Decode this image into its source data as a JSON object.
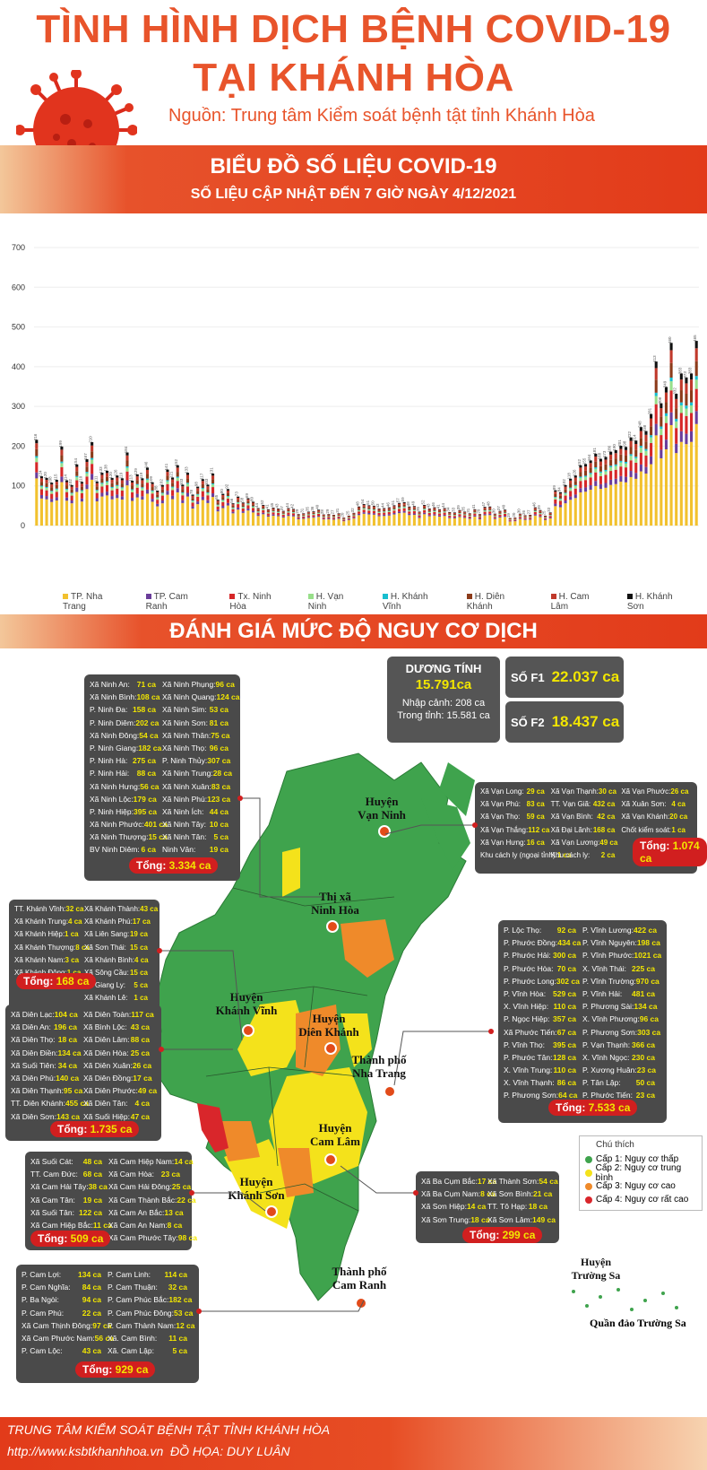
{
  "header": {
    "title_line1": "TÌNH HÌNH DỊCH BỆNH COVID-19",
    "title_line2": "TẠI KHÁNH HÒA",
    "source": "Nguồn: Trung tâm Kiểm soát bệnh tật tỉnh Khánh Hòa",
    "banner_title": "BIỂU ĐỒ SỐ LIỆU COVID-19",
    "banner_subtitle": "SỐ LIỆU CẬP NHẬT ĐẾN 7 GIỜ NGÀY 4/12/2021"
  },
  "colors": {
    "accent": "#e8542b",
    "banner": "#e23b1a",
    "box": "#4a4a4a",
    "value": "#f2e600",
    "total": "#d11f1f",
    "green": "#3fa34d",
    "yellow": "#f4e21b",
    "orange": "#ef8a2a",
    "red": "#d9262b"
  },
  "chart_data": {
    "type": "bar",
    "ylim": [
      0,
      700
    ],
    "yticks": [
      "0",
      "100",
      "200",
      "300",
      "400",
      "500",
      "600",
      "700"
    ],
    "legend": [
      "TP. Nha Trang",
      "TP. Cam Ranh",
      "Tx. Ninh Hòa",
      "H. Vạn Ninh",
      "H. Khánh Vĩnh",
      "H. Diên Khánh",
      "H. Cam Lâm",
      "H. Khánh Sơn"
    ],
    "series_colors": [
      "#f2c12e",
      "#6a3d9a",
      "#d62728",
      "#98df8a",
      "#17becf",
      "#8c3b1a",
      "#c0392b",
      "#111111"
    ],
    "totals": [
      216,
      124,
      120,
      108,
      115,
      199,
      114,
      102,
      154,
      110,
      167,
      210,
      111,
      133,
      138,
      120,
      126,
      119,
      184,
      113,
      129,
      119,
      146,
      109,
      88,
      102,
      141,
      121,
      152,
      103,
      133,
      78,
      98,
      117,
      103,
      131,
      65,
      80,
      92,
      56,
      73,
      58,
      69,
      60,
      44,
      52,
      41,
      45,
      43,
      37,
      44,
      42,
      29,
      31,
      35,
      36,
      40,
      28,
      29,
      27,
      31,
      20,
      25,
      32,
      48,
      54,
      51,
      50,
      43,
      44,
      46,
      51,
      57,
      59,
      48,
      49,
      35,
      52,
      43,
      46,
      41,
      44,
      34,
      33,
      39,
      35,
      31,
      41,
      29,
      47,
      48,
      30,
      37,
      40,
      19,
      20,
      30,
      26,
      27,
      46,
      39,
      25,
      33,
      89,
      84,
      102,
      118,
      126,
      152,
      155,
      164,
      181,
      168,
      173,
      186,
      190,
      201,
      198,
      222,
      214,
      248,
      238,
      281,
      413,
      308,
      349,
      460,
      332,
      383,
      373,
      383,
      465
    ],
    "top_labels": [
      "216",
      "124",
      "120",
      "108",
      "115",
      "199",
      "114",
      "102",
      "154",
      "110",
      "167",
      "210",
      "111",
      "133",
      "138",
      "120",
      "126",
      "119",
      "184",
      "113",
      "129",
      "119",
      "146",
      "109",
      "88",
      "102",
      "141",
      "121",
      "152",
      "103",
      "133",
      "78",
      "98",
      "117",
      "103",
      "131",
      "65",
      "80",
      "92",
      "56",
      "73",
      "58",
      "69",
      "60",
      "44",
      "52",
      "41",
      "45",
      "43",
      "37",
      "44",
      "42",
      "29",
      "31",
      "35",
      "36",
      "40",
      "28",
      "29",
      "27",
      "31",
      "20",
      "25",
      "32",
      "48",
      "54",
      "51",
      "50",
      "43",
      "44",
      "46",
      "51",
      "57",
      "59",
      "48",
      "49",
      "35",
      "52",
      "43",
      "46",
      "41",
      "44",
      "34",
      "33",
      "39",
      "35",
      "31",
      "41",
      "29",
      "47",
      "48",
      "30",
      "37",
      "40",
      "19",
      "20",
      "30",
      "26",
      "27",
      "46",
      "39",
      "25",
      "33",
      "89",
      "84",
      "102",
      "118",
      "126",
      "152",
      "155",
      "164",
      "181",
      "168",
      "173",
      "186",
      "190",
      "201",
      "198",
      "222",
      "214",
      "248",
      "238",
      "281",
      "413",
      "308",
      "349",
      "460",
      "332",
      "383",
      "373",
      "383",
      "465"
    ]
  },
  "section2": {
    "title": "ĐÁNH GIÁ MỨC ĐỘ NGUY CƠ DỊCH"
  },
  "stats": {
    "positive_label": "DƯƠNG TÍNH",
    "positive_value": "15.791ca",
    "import_label": "Nhập cảnh: 208 ca",
    "local_label": "Trong tỉnh: 15.581 ca",
    "f1_label": "SỐ F1",
    "f1_value": "22.037 ca",
    "f2_label": "SỐ F2",
    "f2_value": "18.437 ca"
  },
  "ninh_hoa": {
    "rows": [
      [
        "Xã Ninh An:",
        "71 ca",
        "Xã Ninh Phụng:",
        "96 ca"
      ],
      [
        "Xã Ninh Bình:",
        "108 ca",
        "Xã Ninh Quang:",
        "124 ca"
      ],
      [
        "P. Ninh Đa:",
        "158 ca",
        "Xã Ninh Sim:",
        "53 ca"
      ],
      [
        "P. Ninh Diêm:",
        "202 ca",
        "Xã Ninh Sơn:",
        "81 ca"
      ],
      [
        "Xã Ninh Đông:",
        "54 ca",
        "Xã Ninh Thân:",
        "75 ca"
      ],
      [
        "P. Ninh Giang:",
        "182 ca",
        "Xã Ninh Thọ:",
        "96 ca"
      ],
      [
        "P. Ninh Hà:",
        "275 ca",
        "P. Ninh Thủy:",
        "307 ca"
      ],
      [
        "P. Ninh Hải:",
        "88 ca",
        "Xã Ninh Trung:",
        "28 ca"
      ],
      [
        "Xã Ninh Hưng:",
        "56 ca",
        "Xã Ninh Xuân:",
        "83 ca"
      ],
      [
        "Xã Ninh Lộc:",
        "179 ca",
        "Xã Ninh Phú:",
        "123 ca"
      ],
      [
        "P. Ninh Hiệp:",
        "395 ca",
        "Xã Ninh Ích:",
        "44 ca"
      ],
      [
        "Xã Ninh Phước:",
        "401 ca",
        "Xã Ninh Tây:",
        "10 ca"
      ],
      [
        "Xã Ninh Thượng:",
        "15 ca",
        "Xã Ninh Tân:",
        "5 ca"
      ],
      [
        "BV Ninh Diêm:",
        "6 ca",
        "Ninh Vân:",
        "19 ca"
      ]
    ],
    "total_label": "Tổng:",
    "total": "3.334 ca"
  },
  "van_ninh": {
    "rows": [
      [
        "Xã Vạn Long:",
        "29 ca",
        "Xã Vạn Thạnh:",
        "30 ca",
        "Xã Vạn Phước:",
        "26 ca"
      ],
      [
        "Xã Vạn Phú:",
        "83 ca",
        "TT. Vạn Giã:",
        "432 ca",
        "Xã Xuân Sơn:",
        "4 ca"
      ],
      [
        "Xã Vạn Thọ:",
        "59 ca",
        "Xã Vạn Bình:",
        "42 ca",
        "Xã Vạn Khánh:",
        "20 ca"
      ],
      [
        "Xã Vạn Thắng:",
        "112 ca",
        "Xã Đại Lãnh:",
        "168 ca",
        "Chốt kiểm soát:",
        "1 ca"
      ],
      [
        "Xã Vạn Hưng:",
        "16 ca",
        "Xã Vạn Lương:",
        "49 ca",
        "",
        ""
      ],
      [
        "Khu cách ly (ngoại tỉnh):",
        "1 ca",
        "Khu cách ly:",
        "2 ca",
        "",
        ""
      ]
    ],
    "total_label": "Tổng:",
    "total": "1.074 ca"
  },
  "khanh_vinh": {
    "rows": [
      [
        "TT. Khánh Vĩnh:",
        "32 ca",
        "Xã Khánh Thành:",
        "43 ca"
      ],
      [
        "Xã Khánh Trung:",
        "4 ca",
        "Xã Khánh Phú:",
        "17 ca"
      ],
      [
        "Xã Khánh Hiệp:",
        "1 ca",
        "Xã Liên Sang:",
        "19 ca"
      ],
      [
        "Xã Khánh Thượng:",
        "8 ca",
        "Xã Sơn Thái:",
        "15 ca"
      ],
      [
        "Xã Khánh Nam:",
        "3 ca",
        "Xã Khánh Bình:",
        "4 ca"
      ],
      [
        "Xã Khánh Đông:",
        "1 ca",
        "Xã Sông Cầu:",
        "15 ca"
      ],
      [
        "",
        "",
        "Xã Giang Ly:",
        "5 ca"
      ],
      [
        "",
        "",
        "Xã Khánh Lê:",
        "1 ca"
      ]
    ],
    "total_label": "Tổng:",
    "total": "168 ca"
  },
  "nha_trang": {
    "rows": [
      [
        "P. Lộc Thọ:",
        "92 ca",
        "P. Vĩnh Lương:",
        "422 ca"
      ],
      [
        "P. Phước Đồng:",
        "434 ca",
        "P. Vĩnh Nguyên:",
        "198 ca"
      ],
      [
        "P. Phước Hải:",
        "300 ca",
        "P. Vĩnh Phước:",
        "1021 ca"
      ],
      [
        "P. Phước Hòa:",
        "70 ca",
        "X. Vĩnh Thái:",
        "225 ca"
      ],
      [
        "P. Phước Long:",
        "302 ca",
        "P. Vĩnh Trường:",
        "970 ca"
      ],
      [
        "P. Vĩnh Hòa:",
        "529 ca",
        "P. Vĩnh Hải:",
        "481 ca"
      ],
      [
        "X. Vĩnh Hiệp:",
        "110 ca",
        "P. Phương Sài:",
        "134 ca"
      ],
      [
        "P. Ngọc Hiệp:",
        "357 ca",
        "X. Vĩnh Phương:",
        "96 ca"
      ],
      [
        "Xã Phước Tiến:",
        "67 ca",
        "P. Phương Sơn:",
        "303 ca"
      ],
      [
        "P. Vĩnh Thọ:",
        "395 ca",
        "P. Vạn Thạnh:",
        "366 ca"
      ],
      [
        "P. Phước Tân:",
        "128 ca",
        "X. Vĩnh Ngọc:",
        "230 ca"
      ],
      [
        "X. Vĩnh Trung:",
        "110 ca",
        "P. Xương Huân:",
        "23 ca"
      ],
      [
        "X. Vĩnh Thạnh:",
        "86 ca",
        "P. Tân Lập:",
        "50 ca"
      ],
      [
        "P. Phương Sơn:",
        "64 ca",
        "P. Phước Tiến:",
        "23 ca"
      ]
    ],
    "total_label": "Tổng:",
    "total": "7.533 ca"
  },
  "dien_khanh": {
    "rows": [
      [
        "Xã Diên Lạc:",
        "104 ca",
        "Xã Diên Toàn:",
        "117 ca"
      ],
      [
        "Xã Diên An:",
        "196 ca",
        "Xã Bình Lộc:",
        "43 ca"
      ],
      [
        "Xã Diên Thọ:",
        "18 ca",
        "Xã Diên Lâm:",
        "88 ca"
      ],
      [
        "Xã Diên Điền:",
        "134 ca",
        "Xã Diên Hòa:",
        "25 ca"
      ],
      [
        "Xã Suối Tiên:",
        "34 ca",
        "Xã Diên Xuân:",
        "26 ca"
      ],
      [
        "Xã Diên Phú:",
        "140 ca",
        "Xã Diên Đồng:",
        "17 ca"
      ],
      [
        "Xã Diên Thạnh:",
        "95 ca",
        "Xã Diên Phước:",
        "49 ca"
      ],
      [
        "TT. Diên Khánh:",
        "455 ca",
        "Xã Diên Tân:",
        "4 ca"
      ],
      [
        "Xã Diên Sơn:",
        "143 ca",
        "Xã Suối Hiệp:",
        "47 ca"
      ]
    ],
    "total_label": "Tổng:",
    "total": "1.735 ca"
  },
  "cam_lam": {
    "rows": [
      [
        "Xã Suối Cát:",
        "48 ca",
        "Xã Cam Hiệp Nam:",
        "14 ca"
      ],
      [
        "TT. Cam Đức:",
        "68 ca",
        "Xã Cam Hòa:",
        "23 ca"
      ],
      [
        "Xã Cam Hải Tây:",
        "38 ca",
        "Xã Cam Hải Đông:",
        "25 ca"
      ],
      [
        "Xã Cam Tân:",
        "19 ca",
        "Xã Cam Thành Bắc:",
        "22 ca"
      ],
      [
        "Xã Suối Tân:",
        "122 ca",
        "Xã Cam An Bắc:",
        "13 ca"
      ],
      [
        "Xã Cam Hiệp Bắc:",
        "11 ca",
        "Xã Cam An Nam:",
        "8 ca"
      ],
      [
        "",
        "",
        "Xã Cam Phước Tây:",
        "98 ca"
      ]
    ],
    "total_label": "Tổng:",
    "total": "509 ca"
  },
  "khanh_son": {
    "rows": [
      [
        "Xã Ba Cụm Bắc:",
        "17 ca",
        "Xã Thành Sơn:",
        "54 ca"
      ],
      [
        "Xã Ba Cụm Nam:",
        "8 ca",
        "Xã Sơn Bình:",
        "21 ca"
      ],
      [
        "Xã Sơn Hiệp:",
        "14 ca",
        "TT. Tô Hạp:",
        "18 ca"
      ],
      [
        "Xã Sơn Trung:",
        "18 ca",
        "Xã Sơn Lâm:",
        "149 ca"
      ]
    ],
    "total_label": "Tổng:",
    "total": "299 ca"
  },
  "cam_ranh": {
    "rows": [
      [
        "P. Cam Lợi:",
        "134 ca",
        "P. Cam Linh:",
        "114 ca"
      ],
      [
        "P. Cam Nghĩa:",
        "84 ca",
        "P. Cam Thuận:",
        "32 ca"
      ],
      [
        "P. Ba Ngòi:",
        "94 ca",
        "P. Cam Phúc Bắc:",
        "182 ca"
      ],
      [
        "P. Cam Phú:",
        "22 ca",
        "P. Cam Phúc Đông:",
        "53 ca"
      ],
      [
        "Xã Cam Thịnh Đông:",
        "97 ca",
        "P. Cam Thành Nam:",
        "12 ca"
      ],
      [
        "Xã Cam Phước Nam:",
        "56 ca",
        "Xã. Cam Bình:",
        "11 ca"
      ],
      [
        "P. Cam Lộc:",
        "43 ca",
        "Xã. Cam Lập:",
        "5 ca"
      ]
    ],
    "total_label": "Tổng:",
    "total": "929 ca"
  },
  "map_labels": {
    "van_ninh": [
      "Huyện",
      "Vạn Ninh"
    ],
    "ninh_hoa": [
      "Thị xã",
      "Ninh Hòa"
    ],
    "khanh_vinh": [
      "Huyện",
      "Khánh Vĩnh"
    ],
    "dien_khanh": [
      "Huyện",
      "Diên Khánh"
    ],
    "nha_trang": [
      "Thành phố",
      "Nha Trang"
    ],
    "cam_lam": [
      "Huyện",
      "Cam Lâm"
    ],
    "khanh_son": [
      "Huyện",
      "Khánh Sơn"
    ],
    "cam_ranh": [
      "Thành phố",
      "Cam Ranh"
    ],
    "truong_sa": [
      "Huyện",
      "Trường Sa"
    ],
    "truong_sa_islands": "Quần đảo Trường Sa"
  },
  "legend_box": {
    "title": "Chú thích",
    "items": [
      {
        "label": "Cấp 1: Nguy cơ thấp",
        "color": "#3fa34d"
      },
      {
        "label": "Cấp 2: Nguy cơ trung bình",
        "color": "#f4e21b"
      },
      {
        "label": "Cấp 3: Nguy cơ cao",
        "color": "#ef8a2a"
      },
      {
        "label": "Cấp 4: Nguy cơ rất cao",
        "color": "#d9262b"
      }
    ]
  },
  "footer": {
    "org": "TRUNG TÂM KIỂM SOÁT BỆNH TẬT TỈNH KHÁNH HÒA",
    "url": "http://www.ksbtkhanhhoa.vn",
    "credit": "ĐỒ HỌA: DUY LUÂN"
  }
}
